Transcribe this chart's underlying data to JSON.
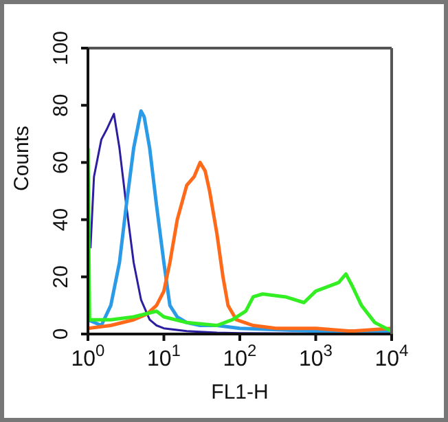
{
  "chart_data": {
    "type": "line",
    "xlabel": "FL1-H",
    "ylabel": "Counts",
    "log": "x",
    "xlim": [
      1,
      10000
    ],
    "xticks": [
      {
        "value": 1,
        "label": "10$^{0}$"
      },
      {
        "value": 10,
        "label": "10$^{1}$"
      },
      {
        "value": 100,
        "label": "10$^{2}$"
      },
      {
        "value": 1000,
        "label": "10$^{3}$"
      },
      {
        "value": 10000,
        "label": "10$^{4}$"
      }
    ],
    "ylim": [
      0,
      100
    ],
    "yticks": [
      0,
      20,
      40,
      60,
      80,
      100
    ],
    "grid": false,
    "legend": false,
    "marker": "none",
    "line_style": "solid",
    "series": [
      {
        "color": "#2b1fa0",
        "x": [
          1.08,
          1.2,
          1.5,
          1.8,
          2.2,
          2.6,
          3.2,
          4,
          5,
          6.5,
          8,
          10,
          20,
          50,
          100,
          1000,
          10000
        ],
        "values": [
          30,
          55,
          68,
          72,
          77,
          65,
          45,
          25,
          12,
          5,
          3,
          2,
          1,
          0.5,
          0.3,
          0.2,
          0
        ]
      },
      {
        "color": "#2b9be8",
        "x": [
          1,
          1.5,
          2,
          2.6,
          3.2,
          4,
          5,
          5.5,
          6.5,
          8,
          10,
          12,
          15,
          20,
          30,
          50,
          100,
          1000,
          10000
        ],
        "values": [
          5,
          3,
          10,
          25,
          45,
          65,
          78,
          76,
          65,
          45,
          25,
          10,
          6,
          4,
          3,
          3,
          2,
          1,
          1
        ]
      },
      {
        "color": "#ff6a1a",
        "x": [
          1,
          2,
          4,
          6,
          8,
          10,
          12,
          15,
          20,
          25,
          30,
          35,
          40,
          50,
          60,
          70,
          90,
          150,
          300,
          1000,
          3000,
          10000
        ],
        "values": [
          2,
          3,
          5,
          7,
          10,
          15,
          25,
          40,
          52,
          55,
          60,
          57,
          50,
          35,
          20,
          10,
          5,
          3,
          2,
          2,
          1,
          2
        ]
      },
      {
        "color": "#33ee22",
        "x": [
          1,
          1.05,
          2,
          4,
          8,
          10,
          20,
          50,
          80,
          120,
          150,
          200,
          400,
          700,
          1000,
          2000,
          2500,
          3000,
          4000,
          6000,
          10000
        ],
        "values": [
          65,
          5,
          5,
          6,
          8,
          6,
          4,
          3,
          5,
          8,
          13,
          14,
          13,
          11,
          15,
          18,
          21,
          17,
          10,
          4,
          1
        ]
      }
    ]
  }
}
